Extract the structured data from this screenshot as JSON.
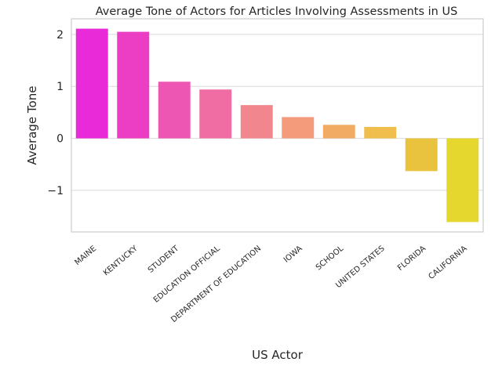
{
  "chart_data": {
    "type": "bar",
    "title": "Average Tone of Actors for Articles Involving Assessments in US",
    "xlabel": "US Actor",
    "ylabel": "Average Tone",
    "categories": [
      "MAINE",
      "KENTUCKY",
      "STUDENT",
      "EDUCATION OFFICIAL",
      "DEPARTMENT OF EDUCATION",
      "IOWA",
      "SCHOOL",
      "UNITED STATES",
      "FLORIDA",
      "CALIFORNIA"
    ],
    "values": [
      2.11,
      2.05,
      1.09,
      0.94,
      0.64,
      0.41,
      0.26,
      0.22,
      -0.63,
      -1.61
    ],
    "colors": [
      "#e82ad8",
      "#eb3ec5",
      "#ed57b3",
      "#ef6da3",
      "#f1868f",
      "#f39b7b",
      "#f1ab63",
      "#efbe4d",
      "#eac33e",
      "#e5d72d"
    ],
    "ylim": [
      -1.8,
      2.3
    ],
    "yticks": [
      -1,
      0,
      1,
      2
    ],
    "ytick_labels": [
      "−1",
      "0",
      "1",
      "2"
    ],
    "grid": true
  }
}
